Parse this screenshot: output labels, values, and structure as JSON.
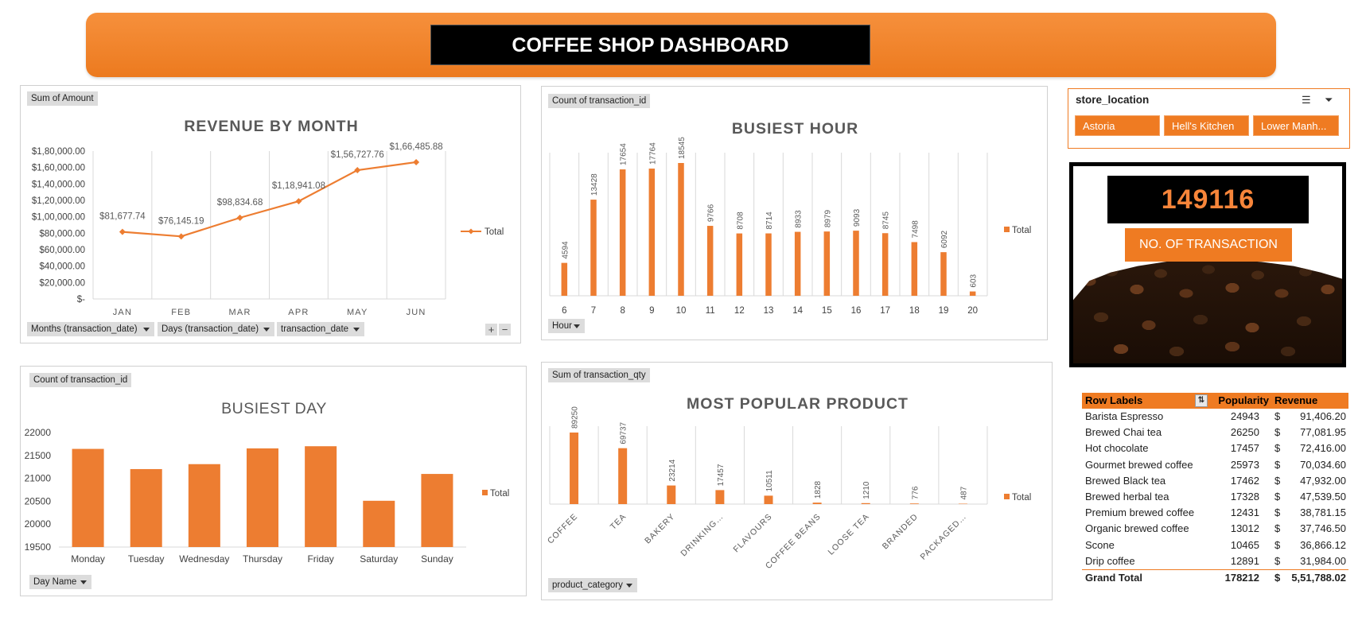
{
  "dashboard_title": "COFFEE SHOP DASHBOARD",
  "colors": {
    "accent": "#ED7D31",
    "banner": "#EF7B22",
    "kpi_number": "#F7853A"
  },
  "revenue_panel": {
    "field_label": "Sum of Amount",
    "filters": [
      "Months (transaction_date)",
      "Days (transaction_date)",
      "transaction_date"
    ],
    "plus": "+",
    "minus": "−"
  },
  "hour_panel": {
    "field_label": "Count of transaction_id",
    "filter": "Hour"
  },
  "day_panel": {
    "field_label": "Count of transaction_id",
    "filter": "Day Name"
  },
  "product_panel": {
    "field_label": "Sum of transaction_qty",
    "filter": "product_category"
  },
  "chart_data": [
    {
      "id": "revenue",
      "type": "line",
      "title": "REVENUE BY MONTH",
      "categories": [
        "JAN",
        "FEB",
        "MAR",
        "APR",
        "MAY",
        "JUN"
      ],
      "series": [
        {
          "name": "Total",
          "values": [
            81677.74,
            76145.19,
            98834.68,
            118941.08,
            156727.76,
            166485.88
          ]
        }
      ],
      "data_labels": [
        "$81,677.74",
        "$76,145.19",
        "$98,834.68",
        "$1,18,941.08",
        "$1,56,727.76",
        "$1,66,485.88"
      ],
      "ylim": [
        0,
        180000
      ],
      "y_ticks": [
        "$-",
        "$20,000.00",
        "$40,000.00",
        "$60,000.00",
        "$80,000.00",
        "$1,00,000.00",
        "$1,20,000.00",
        "$1,40,000.00",
        "$1,60,000.00",
        "$1,80,000.00"
      ],
      "legend": "right",
      "grid": "vertical"
    },
    {
      "id": "hour",
      "type": "bar",
      "title": "BUSIEST HOUR",
      "categories": [
        "6",
        "7",
        "8",
        "9",
        "10",
        "11",
        "12",
        "13",
        "14",
        "15",
        "16",
        "17",
        "18",
        "19",
        "20"
      ],
      "series": [
        {
          "name": "Total",
          "values": [
            4594,
            13428,
            17654,
            17764,
            18545,
            9766,
            8708,
            8714,
            8933,
            8979,
            9093,
            8745,
            7498,
            6092,
            603
          ]
        }
      ],
      "ylim": [
        0,
        18545
      ],
      "legend": "right",
      "grid": "vertical"
    },
    {
      "id": "day",
      "type": "bar",
      "title": "BUSIEST DAY",
      "categories": [
        "Monday",
        "Tuesday",
        "Wednesday",
        "Thursday",
        "Friday",
        "Saturday",
        "Sunday"
      ],
      "series": [
        {
          "name": "Total",
          "values": [
            21643,
            21202,
            21310,
            21654,
            21701,
            20510,
            21096
          ]
        }
      ],
      "ylim": [
        19500,
        22000
      ],
      "y_ticks": [
        "19500",
        "20000",
        "20500",
        "21000",
        "21500",
        "22000"
      ],
      "legend": "right",
      "grid": "none"
    },
    {
      "id": "product",
      "type": "bar",
      "title": "MOST POPULAR PRODUCT",
      "categories": [
        "COFFEE",
        "TEA",
        "BAKERY",
        "DRINKING…",
        "FLAVOURS",
        "COFFEE BEANS",
        "LOOSE TEA",
        "BRANDED",
        "PACKAGED…"
      ],
      "series": [
        {
          "name": "Total",
          "values": [
            89250,
            69737,
            23214,
            17457,
            10511,
            1828,
            1210,
            776,
            487
          ]
        }
      ],
      "ylim": [
        0,
        89250
      ],
      "legend": "right",
      "grid": "vertical"
    }
  ],
  "slicer": {
    "header": "store_location",
    "items": [
      "Astoria",
      "Hell's Kitchen",
      "Lower Manh..."
    ]
  },
  "kpi": {
    "value": "149116",
    "label": "NO. OF TRANSACTION"
  },
  "pivot": {
    "headers": [
      "Row Labels",
      "Popularity",
      "Revenue"
    ],
    "currency": "$",
    "rows": [
      {
        "name": "Barista Espresso",
        "popularity": "24943",
        "revenue": "91,406.20"
      },
      {
        "name": "Brewed Chai tea",
        "popularity": "26250",
        "revenue": "77,081.95"
      },
      {
        "name": "Hot chocolate",
        "popularity": "17457",
        "revenue": "72,416.00"
      },
      {
        "name": "Gourmet brewed coffee",
        "popularity": "25973",
        "revenue": "70,034.60"
      },
      {
        "name": "Brewed Black tea",
        "popularity": "17462",
        "revenue": "47,932.00"
      },
      {
        "name": "Brewed herbal tea",
        "popularity": "17328",
        "revenue": "47,539.50"
      },
      {
        "name": "Premium brewed coffee",
        "popularity": "12431",
        "revenue": "38,781.15"
      },
      {
        "name": "Organic brewed coffee",
        "popularity": "13012",
        "revenue": "37,746.50"
      },
      {
        "name": "Scone",
        "popularity": "10465",
        "revenue": "36,866.12"
      },
      {
        "name": "Drip coffee",
        "popularity": "12891",
        "revenue": "31,984.00"
      }
    ],
    "total": {
      "name": "Grand Total",
      "popularity": "178212",
      "revenue": "5,51,788.02"
    }
  }
}
